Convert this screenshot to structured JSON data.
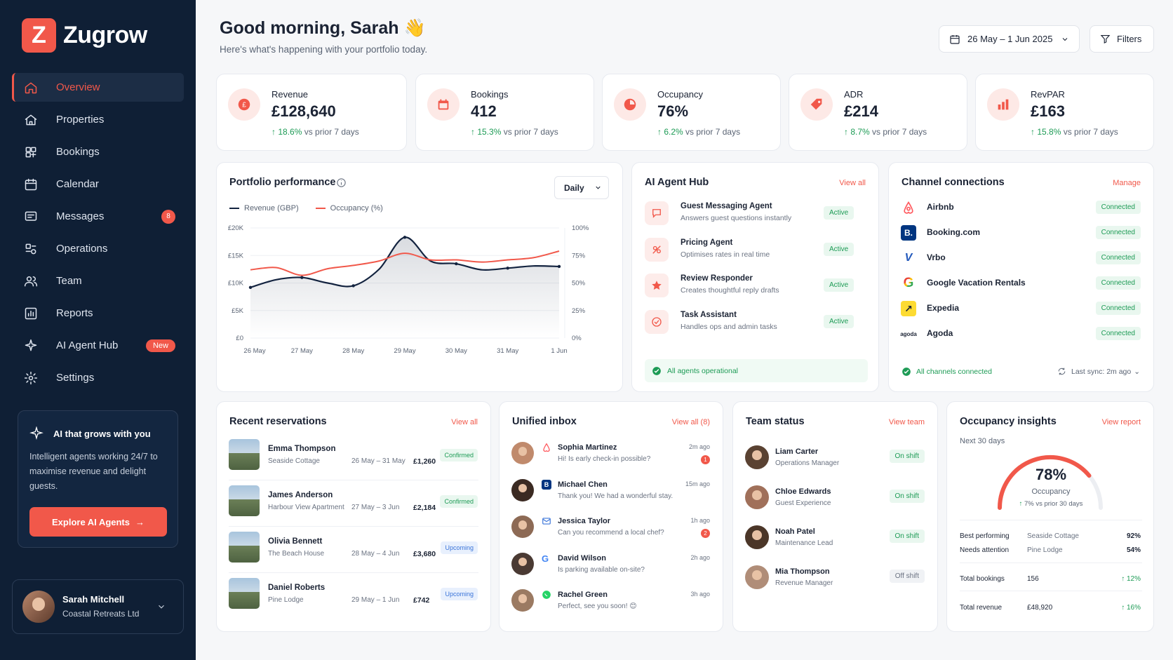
{
  "app": {
    "logo_letter": "Z",
    "name": "Zugrow",
    "accent": "#f1584a",
    "sidebar_bg": "#0f1f35"
  },
  "sidebar": {
    "items": [
      {
        "label": "Overview",
        "icon": "home-icon",
        "active": true
      },
      {
        "label": "Properties",
        "icon": "house-icon"
      },
      {
        "label": "Bookings",
        "icon": "bookings-icon"
      },
      {
        "label": "Calendar",
        "icon": "calendar-icon"
      },
      {
        "label": "Messages",
        "icon": "message-icon",
        "badge": "8"
      },
      {
        "label": "Operations",
        "icon": "operations-icon"
      },
      {
        "label": "Team",
        "icon": "team-icon"
      },
      {
        "label": "Reports",
        "icon": "reports-icon"
      },
      {
        "label": "AI Agent Hub",
        "icon": "sparkle-icon",
        "tag": "New"
      },
      {
        "label": "Settings",
        "icon": "gear-icon"
      }
    ],
    "promo": {
      "title": "AI that grows with you",
      "text": "Intelligent agents working 24/7 to maximise revenue and delight guests.",
      "button": "Explore AI Agents"
    },
    "user": {
      "name": "Sarah Mitchell",
      "company": "Coastal Retreats Ltd"
    }
  },
  "header": {
    "greeting": "Good morning, Sarah",
    "wave": "👋",
    "subtitle": "Here's what's happening with your portfolio today.",
    "date_range": "26 May – 1 Jun 2025",
    "filters": "Filters"
  },
  "kpis": [
    {
      "label": "Revenue",
      "value": "£128,640",
      "change": "18.6%",
      "suffix": "vs prior 7 days",
      "icon": "pound-icon"
    },
    {
      "label": "Bookings",
      "value": "412",
      "change": "15.3%",
      "suffix": "vs prior 7 days",
      "icon": "calendar-icon"
    },
    {
      "label": "Occupancy",
      "value": "76%",
      "change": "6.2%",
      "suffix": "vs prior 7 days",
      "icon": "pie-icon"
    },
    {
      "label": "ADR",
      "value": "£214",
      "change": "8.7%",
      "suffix": "vs prior 7 days",
      "icon": "tag-icon"
    },
    {
      "label": "RevPAR",
      "value": "£163",
      "change": "15.8%",
      "suffix": "vs prior 7 days",
      "icon": "bar-icon"
    }
  ],
  "performance": {
    "title": "Portfolio performance",
    "period": "Daily",
    "legend_revenue": "Revenue (GBP)",
    "legend_occupancy": "Occupancy (%)"
  },
  "chart_data": {
    "type": "line",
    "x": [
      "26 May",
      "27 May",
      "28 May",
      "29 May",
      "30 May",
      "31 May",
      "1 Jun"
    ],
    "series": [
      {
        "name": "Revenue (GBP)",
        "axis": "left",
        "color": "#13233f",
        "points": [
          [
            0,
            9200
          ],
          [
            0.5,
            10600
          ],
          [
            1,
            11000
          ],
          [
            1.5,
            10000
          ],
          [
            2,
            9500
          ],
          [
            2.5,
            12500
          ],
          [
            3,
            18300
          ],
          [
            3.5,
            14000
          ],
          [
            4,
            13500
          ],
          [
            4.5,
            12400
          ],
          [
            5,
            12700
          ],
          [
            5.5,
            13100
          ],
          [
            6,
            13000
          ]
        ]
      },
      {
        "name": "Occupancy (%)",
        "axis": "right",
        "color": "#f1584a",
        "points": [
          [
            0,
            62
          ],
          [
            0.5,
            64
          ],
          [
            1,
            57
          ],
          [
            1.5,
            63
          ],
          [
            2,
            66
          ],
          [
            2.5,
            70
          ],
          [
            3,
            77
          ],
          [
            3.5,
            71
          ],
          [
            4,
            71
          ],
          [
            4.5,
            69
          ],
          [
            5,
            71
          ],
          [
            5.5,
            73
          ],
          [
            6,
            79
          ]
        ]
      }
    ],
    "y_left": {
      "ticks": [
        "£0",
        "£5K",
        "£10K",
        "£15K",
        "£20K"
      ],
      "min": 0,
      "max": 20000
    },
    "y_right": {
      "ticks": [
        "0%",
        "25%",
        "50%",
        "75%",
        "100%"
      ],
      "min": 0,
      "max": 100
    },
    "grid": true,
    "legend": "top-left"
  },
  "agents": {
    "title": "AI Agent Hub",
    "view_all": "View all",
    "items": [
      {
        "name": "Guest Messaging Agent",
        "desc": "Answers guest questions instantly",
        "status": "Active",
        "icon": "chat-icon"
      },
      {
        "name": "Pricing Agent",
        "desc": "Optimises rates in real time",
        "status": "Active",
        "icon": "pricing-icon"
      },
      {
        "name": "Review Responder",
        "desc": "Creates thoughtful reply drafts",
        "status": "Active",
        "icon": "star-icon"
      },
      {
        "name": "Task Assistant",
        "desc": "Handles ops and admin tasks",
        "status": "Active",
        "icon": "task-icon"
      }
    ],
    "footer": "All agents operational"
  },
  "channels": {
    "title": "Channel connections",
    "manage": "Manage",
    "items": [
      {
        "name": "Airbnb",
        "status": "Connected",
        "icon": "airbnb-icon",
        "color": "#ff5a5f"
      },
      {
        "name": "Booking.com",
        "status": "Connected",
        "icon": "booking-icon",
        "color": "#003580",
        "mark": "B."
      },
      {
        "name": "Vrbo",
        "status": "Connected",
        "icon": "vrbo-icon",
        "color": "#245abc",
        "mark": "V"
      },
      {
        "name": "Google Vacation Rentals",
        "status": "Connected",
        "icon": "google-icon",
        "mark": "G"
      },
      {
        "name": "Expedia",
        "status": "Connected",
        "icon": "expedia-icon",
        "color": "#fddb32",
        "mark": "↗"
      },
      {
        "name": "Agoda",
        "status": "Connected",
        "icon": "agoda-icon",
        "mark": "agoda"
      }
    ],
    "footer": "All channels connected",
    "sync": "Last sync: 2m ago"
  },
  "reservations": {
    "title": "Recent reservations",
    "view_all": "View all",
    "items": [
      {
        "guest": "Emma Thompson",
        "property": "Seaside Cottage",
        "dates": "26 May – 31 May",
        "amount": "£1,260",
        "status": "Confirmed"
      },
      {
        "guest": "James Anderson",
        "property": "Harbour View Apartment",
        "dates": "27 May – 3 Jun",
        "amount": "£2,184",
        "status": "Confirmed"
      },
      {
        "guest": "Olivia Bennett",
        "property": "The Beach House",
        "dates": "28 May – 4 Jun",
        "amount": "£3,680",
        "status": "Upcoming"
      },
      {
        "guest": "Daniel Roberts",
        "property": "Pine Lodge",
        "dates": "29 May – 1 Jun",
        "amount": "£742",
        "status": "Upcoming"
      }
    ]
  },
  "inbox": {
    "title": "Unified inbox",
    "view_all": "View all (8)",
    "items": [
      {
        "name": "Sophia Martinez",
        "msg": "Hi! Is early check-in possible?",
        "time": "2m ago",
        "unread": "1",
        "channel": "airbnb-icon"
      },
      {
        "name": "Michael Chen",
        "msg": "Thank you! We had a wonderful stay.",
        "time": "15m ago",
        "channel": "booking-icon"
      },
      {
        "name": "Jessica Taylor",
        "msg": "Can you recommend a local chef?",
        "time": "1h ago",
        "unread": "2",
        "channel": "mail-icon"
      },
      {
        "name": "David Wilson",
        "msg": "Is parking available on-site?",
        "time": "2h ago",
        "channel": "google-icon"
      },
      {
        "name": "Rachel Green",
        "msg": "Perfect, see you soon! 😊",
        "time": "3h ago",
        "channel": "whatsapp-icon"
      }
    ]
  },
  "team": {
    "title": "Team status",
    "view_team": "View team",
    "items": [
      {
        "name": "Liam Carter",
        "role": "Operations Manager",
        "status": "On shift"
      },
      {
        "name": "Chloe Edwards",
        "role": "Guest Experience",
        "status": "On shift"
      },
      {
        "name": "Noah Patel",
        "role": "Maintenance Lead",
        "status": "On shift"
      },
      {
        "name": "Mia Thompson",
        "role": "Revenue Manager",
        "status": "Off shift"
      }
    ]
  },
  "insights": {
    "title": "Occupancy insights",
    "view_report": "View report",
    "subtitle": "Next 30 days",
    "gauge_value": "78%",
    "gauge_fraction": 0.78,
    "gauge_label": "Occupancy",
    "gauge_change": "7% vs prior 30 days",
    "best_label": "Best performing",
    "best_property": "Seaside Cottage",
    "best_value": "92%",
    "attention_label": "Needs attention",
    "attention_property": "Pine Lodge",
    "attention_value": "54%",
    "bookings_label": "Total bookings",
    "bookings_value": "156",
    "bookings_change": "12%",
    "revenue_label": "Total revenue",
    "revenue_value": "£48,920",
    "revenue_change": "16%"
  }
}
